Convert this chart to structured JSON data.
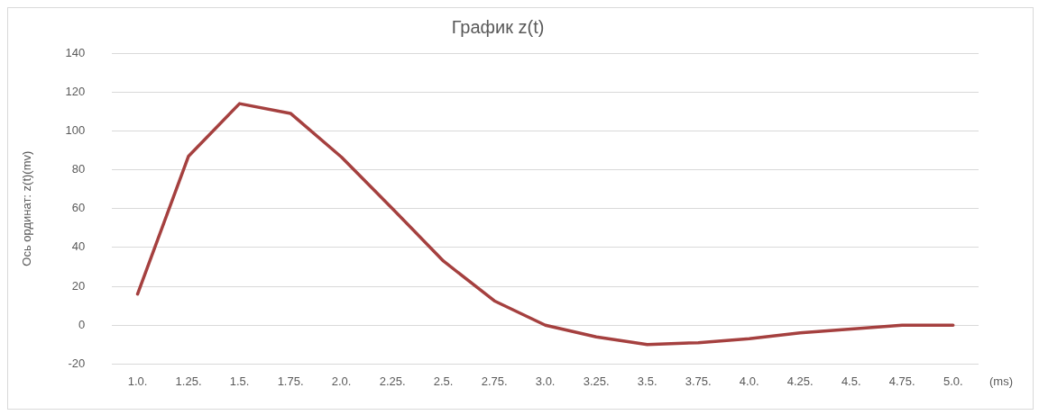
{
  "chart_data": {
    "type": "line",
    "title": "График z(t)",
    "xlabel": "(ms)",
    "ylabel": "Ось ординат: z(t)(mv)",
    "categories": [
      "1.0.",
      "1.25.",
      "1.5.",
      "1.75.",
      "2.0.",
      "2.25.",
      "2.5.",
      "2.75.",
      "3.0.",
      "3.25.",
      "3.5.",
      "3.75.",
      "4.0.",
      "4.25.",
      "4.5.",
      "4.75.",
      "5.0."
    ],
    "series": [
      {
        "color": "#a5403f",
        "values": [
          16,
          87,
          114,
          109,
          86.5,
          60,
          33,
          12.5,
          0,
          -6,
          -10,
          -9,
          -7,
          -4,
          -2,
          0,
          0
        ]
      }
    ],
    "ylim": [
      -20,
      140
    ],
    "yticks": [
      -20,
      0,
      20,
      40,
      60,
      80,
      100,
      120,
      140
    ],
    "grid": "y",
    "legend": false,
    "marker": "none",
    "line_style": "solid"
  }
}
